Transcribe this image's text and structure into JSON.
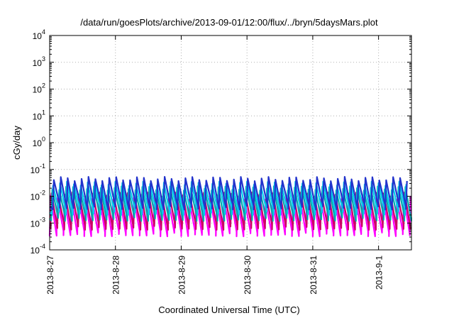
{
  "chart_data": {
    "type": "line",
    "title": "/data/run/goesPlots/archive/2013-09-01/12:00/flux/../bryn/5daysMars.plot",
    "xlabel": "Coordinated Universal Time (UTC)",
    "ylabel": "cGy/day",
    "y_scale": "log",
    "ylim": [
      0.0001,
      10000
    ],
    "y_ticks": [
      {
        "base": "10",
        "exp": "4"
      },
      {
        "base": "10",
        "exp": "3"
      },
      {
        "base": "10",
        "exp": "2"
      },
      {
        "base": "10",
        "exp": "1"
      },
      {
        "base": "10",
        "exp": "0"
      },
      {
        "base": "10",
        "exp": "-1"
      },
      {
        "base": "10",
        "exp": "-2"
      },
      {
        "base": "10",
        "exp": "-3"
      },
      {
        "base": "10",
        "exp": "-4"
      }
    ],
    "x_ticks": [
      "2013-8-27",
      "2013-8-28",
      "2013-8-29",
      "2013-8-30",
      "2013-8-31",
      "2013-9-1"
    ],
    "xlim_days": [
      0,
      5.5
    ],
    "oscillation": {
      "cycles_per_day": 9.5,
      "rise_fraction": 0.15
    },
    "grid": true,
    "legend": "none",
    "series": [
      {
        "color": "#ff00ff",
        "peak": 0.009,
        "trough": 0.0004
      },
      {
        "color": "#cc0066",
        "peak": 0.012,
        "trough": 0.0007
      },
      {
        "color": "#00aaaa",
        "peak": 0.02,
        "trough": 0.0015
      },
      {
        "color": "#00ccee",
        "peak": 0.03,
        "trough": 0.0025
      },
      {
        "color": "#2233cc",
        "peak": 0.045,
        "trough": 0.004
      }
    ]
  }
}
